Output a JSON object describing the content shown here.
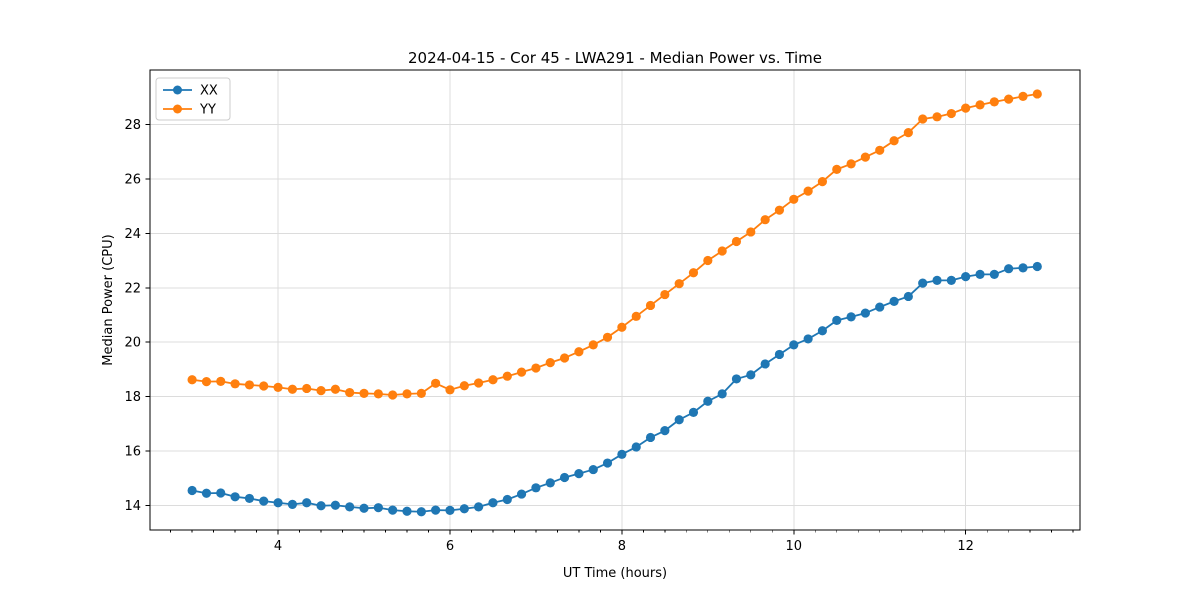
{
  "chart_data": {
    "type": "line",
    "title": "2024-04-15 - Cor 45 - LWA291 - Median Power vs. Time",
    "xlabel": "UT Time (hours)",
    "ylabel": "Median Power (CPU)",
    "xlim": [
      2.51,
      13.33
    ],
    "ylim": [
      13.1,
      30.0
    ],
    "xticks": [
      4,
      6,
      8,
      10,
      12
    ],
    "x_minor_tick_step": 0.25,
    "yticks": [
      14,
      16,
      18,
      20,
      22,
      24,
      26,
      28
    ],
    "grid": true,
    "grid_color": "#dcdcdc",
    "legend_position": "upper-left",
    "x": [
      3.0,
      3.167,
      3.333,
      3.5,
      3.667,
      3.833,
      4.0,
      4.167,
      4.333,
      4.5,
      4.667,
      4.833,
      5.0,
      5.167,
      5.333,
      5.5,
      5.667,
      5.833,
      6.0,
      6.167,
      6.333,
      6.5,
      6.667,
      6.833,
      7.0,
      7.167,
      7.333,
      7.5,
      7.667,
      7.833,
      8.0,
      8.167,
      8.333,
      8.5,
      8.667,
      8.833,
      9.0,
      9.167,
      9.333,
      9.5,
      9.667,
      9.833,
      10.0,
      10.167,
      10.333,
      10.5,
      10.667,
      10.833,
      11.0,
      11.167,
      11.333,
      11.5,
      11.667,
      11.833,
      12.0,
      12.167,
      12.333,
      12.5,
      12.667,
      12.833
    ],
    "series": [
      {
        "name": "XX",
        "color": "#1f77b4",
        "values": [
          14.55,
          14.45,
          14.46,
          14.32,
          14.26,
          14.16,
          14.1,
          14.04,
          14.1,
          13.99,
          14.01,
          13.95,
          13.9,
          13.92,
          13.83,
          13.79,
          13.77,
          13.83,
          13.82,
          13.88,
          13.95,
          14.1,
          14.22,
          14.42,
          14.65,
          14.83,
          15.03,
          15.17,
          15.32,
          15.56,
          15.88,
          16.15,
          16.5,
          16.75,
          17.15,
          17.42,
          17.83,
          18.1,
          18.65,
          18.8,
          19.2,
          19.55,
          19.9,
          20.12,
          20.42,
          20.8,
          20.93,
          21.07,
          21.29,
          21.5,
          21.68,
          22.17,
          22.27,
          22.27,
          22.41,
          22.49,
          22.49,
          22.7,
          22.73,
          22.78
        ]
      },
      {
        "name": "YY",
        "color": "#ff7f0e",
        "values": [
          18.62,
          18.55,
          18.56,
          18.47,
          18.43,
          18.39,
          18.34,
          18.27,
          18.3,
          18.22,
          18.27,
          18.15,
          18.12,
          18.1,
          18.06,
          18.1,
          18.12,
          18.49,
          18.25,
          18.4,
          18.5,
          18.62,
          18.75,
          18.9,
          19.05,
          19.25,
          19.42,
          19.65,
          19.9,
          20.18,
          20.55,
          20.95,
          21.35,
          21.75,
          22.15,
          22.55,
          23.0,
          23.35,
          23.7,
          24.05,
          24.5,
          24.85,
          25.25,
          25.55,
          25.9,
          26.35,
          26.55,
          26.8,
          27.05,
          27.4,
          27.7,
          28.2,
          28.28,
          28.4,
          28.6,
          28.72,
          28.83,
          28.93,
          29.03,
          29.12
        ]
      }
    ]
  }
}
